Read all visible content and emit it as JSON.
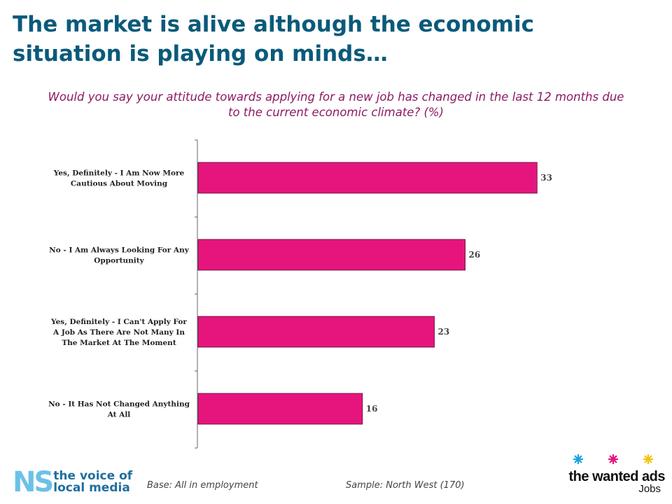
{
  "title": "The market is alive although the economic situation is playing on minds…",
  "chart_data": {
    "type": "bar",
    "orientation": "horizontal",
    "title": "Would you say your attitude towards applying for a new job has changed in the last 12 months due to the current economic climate? (%)",
    "categories": [
      [
        "Yes, Definitely - I Am Now More",
        "Cautious About Moving"
      ],
      [
        "No - I Am Always Looking For Any",
        "Opportunity"
      ],
      [
        "Yes, Definitely - I Can't Apply For",
        "A Job As There Are Not Many In",
        "The Market At The Moment"
      ],
      [
        "No - It Has Not Changed Anything",
        "At All"
      ]
    ],
    "values": [
      33,
      26,
      23,
      16
    ],
    "xlim": [
      0,
      40
    ],
    "bar_color": "#e6157e",
    "grid": false,
    "legend": "none"
  },
  "footer": {
    "base": "Base: All in employment",
    "sample": "Sample: North West (170)"
  },
  "logos": {
    "ns_mark": "NS",
    "ns_line1": "the voice of",
    "ns_line2": "local media",
    "twa_name": "the wanted ads",
    "twa_sub": "Jobs",
    "star_colors": [
      "#1aa3e0",
      "#e6157e",
      "#f2c40f"
    ]
  }
}
